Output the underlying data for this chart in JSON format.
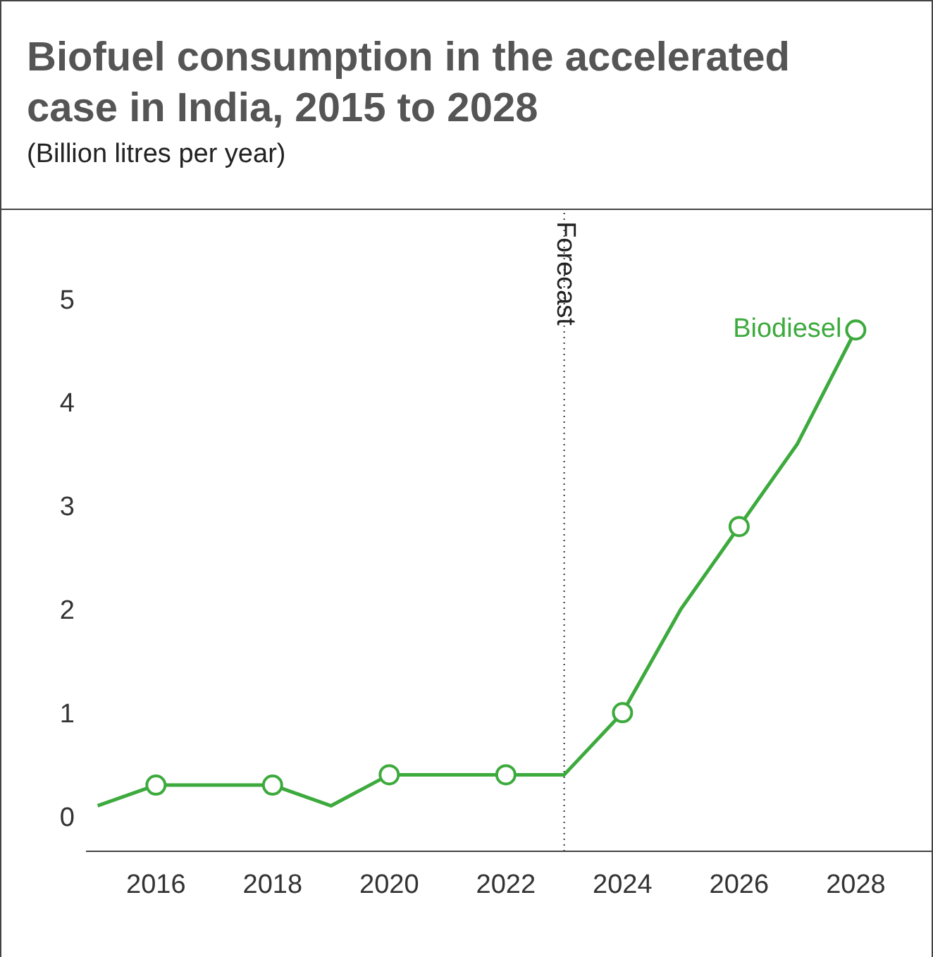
{
  "chart_data": {
    "type": "line",
    "title": "Biofuel consumption in the accelerated case in India, 2015 to 2028",
    "subtitle": "(Billion litres per year)",
    "x": [
      2015,
      2016,
      2017,
      2018,
      2019,
      2020,
      2021,
      2022,
      2023,
      2024,
      2025,
      2026,
      2027,
      2028
    ],
    "series": [
      {
        "name": "Biodiesel",
        "color": "#3daa3d",
        "values": [
          0.1,
          0.3,
          0.3,
          0.3,
          0.1,
          0.4,
          0.4,
          0.4,
          0.4,
          1.0,
          2.0,
          2.8,
          3.6,
          4.7
        ]
      }
    ],
    "xlim": [
      2014.8,
      2029.3
    ],
    "xticks": [
      2016,
      2018,
      2020,
      2022,
      2024,
      2026,
      2028
    ],
    "ylim": [
      -0.34,
      5.86
    ],
    "yticks": [
      0,
      1,
      2,
      3,
      4,
      5
    ],
    "ref_lines": [
      {
        "axis": "x",
        "value": 2023,
        "label": "Forecast",
        "color": "#333333",
        "line_style": "dotted"
      }
    ],
    "grid": false,
    "legend": false,
    "marker": "circle",
    "line_style": "solid"
  }
}
